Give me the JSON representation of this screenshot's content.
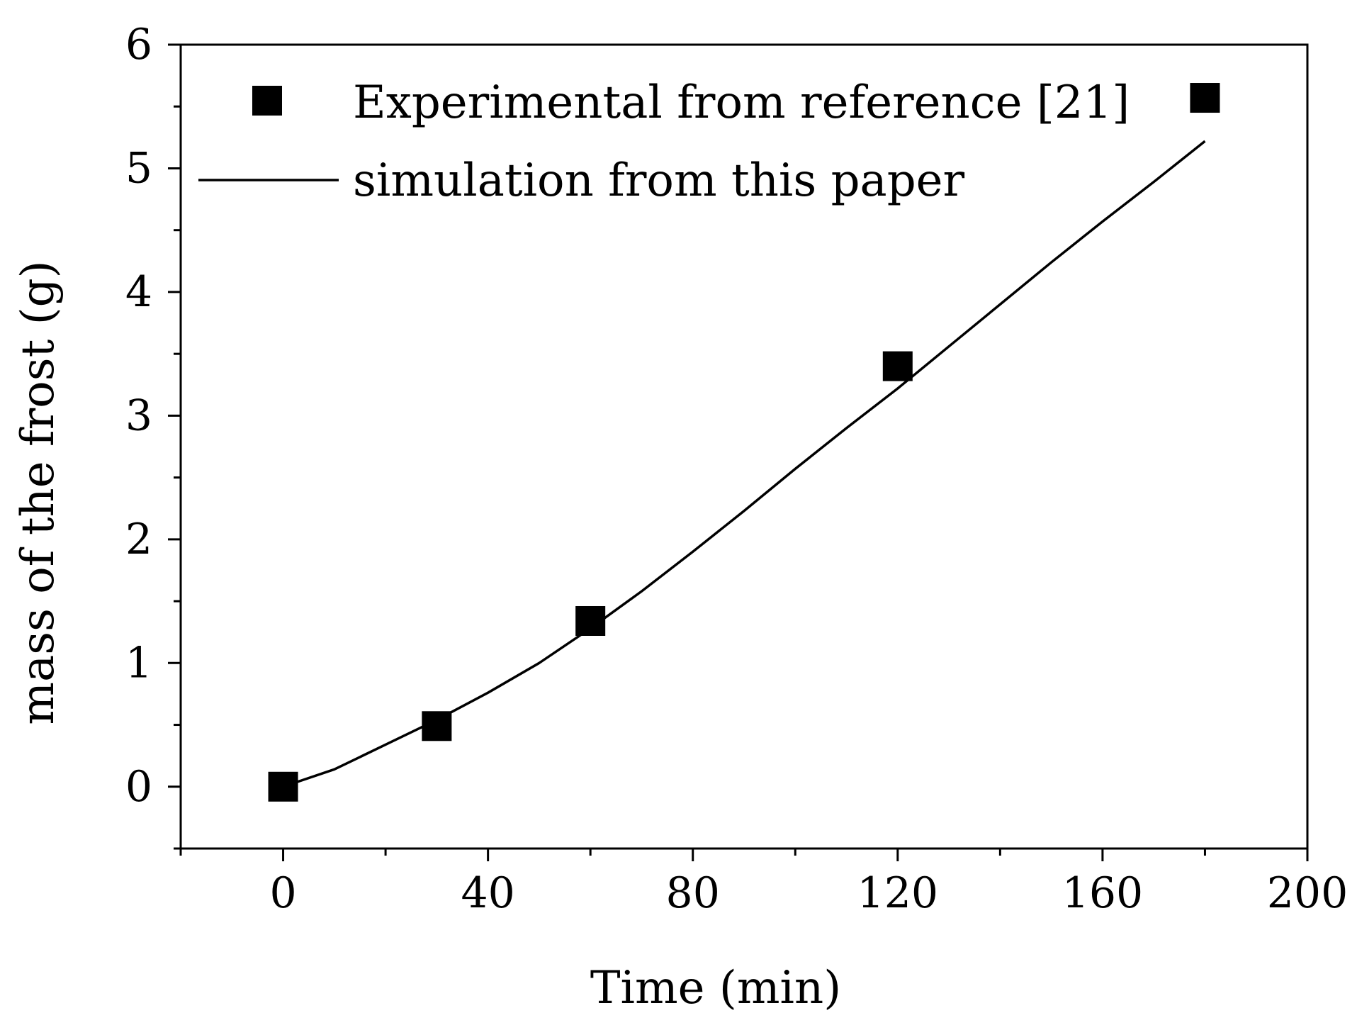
{
  "chart_data": {
    "type": "scatter+line",
    "title": "",
    "xlabel": "Time (min)",
    "ylabel": "mass of the frost (g)",
    "xlim": [
      -20,
      200
    ],
    "ylim": [
      -0.5,
      6
    ],
    "x_ticks": [
      0,
      40,
      80,
      120,
      160,
      200
    ],
    "y_ticks": [
      0,
      1,
      2,
      3,
      4,
      5,
      6
    ],
    "x_minor_step": 20,
    "y_minor_step": 0.5,
    "grid": false,
    "legend_position": "top-left",
    "series": [
      {
        "name": "Experimental from reference [21]",
        "kind": "scatter",
        "marker": "square",
        "color": "#000000",
        "x": [
          0,
          30,
          60,
          120,
          180
        ],
        "y": [
          0.0,
          0.49,
          1.34,
          3.4,
          5.57
        ]
      },
      {
        "name": "simulation from this paper",
        "kind": "line",
        "color": "#000000",
        "x": [
          0,
          10,
          20,
          30,
          40,
          50,
          60,
          70,
          80,
          90,
          100,
          110,
          120,
          130,
          140,
          150,
          160,
          170,
          180
        ],
        "y": [
          0.0,
          0.14,
          0.34,
          0.54,
          0.76,
          1.0,
          1.28,
          1.58,
          1.9,
          2.23,
          2.57,
          2.9,
          3.22,
          3.56,
          3.9,
          4.24,
          4.57,
          4.89,
          5.22
        ]
      }
    ]
  }
}
